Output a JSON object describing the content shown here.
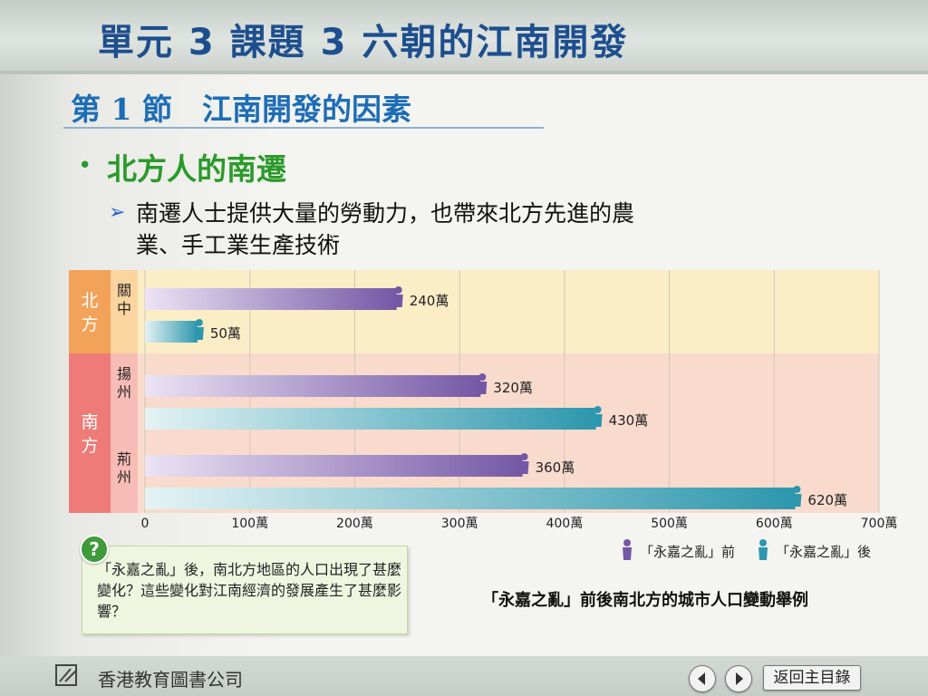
{
  "header": {
    "unit_title": "單元 3 課題 3  六朝的江南開發"
  },
  "section": {
    "title": "第 1 節　江南開發的因素"
  },
  "bullet": {
    "title": "北方人的南遷",
    "sub_text": "南遷人士提供大量的勞動力，也帶來北方先進的農業、手工業生產技術"
  },
  "question": {
    "icon_glyph": "?",
    "text": "「永嘉之亂」後，南北方地區的人口出現了甚麼變化？這些變化對江南經濟的發展產生了甚麼影響？"
  },
  "caption": "「永嘉之亂」前後南北方的城市人口變動舉例",
  "footer": {
    "publisher": "香港教育圖書公司",
    "home_label": "返回主目錄",
    "icons": {
      "logo": "publisher-logo-icon",
      "prev": "prev-arrow-icon",
      "next": "next-arrow-icon"
    }
  },
  "chart_data": {
    "type": "bar",
    "orientation": "horizontal",
    "regions": [
      {
        "name": "北方",
        "cities": [
          "關中"
        ]
      },
      {
        "name": "南方",
        "cities": [
          "揚州",
          "荊州"
        ]
      }
    ],
    "categories": [
      "關中",
      "揚州",
      "荊州"
    ],
    "series": [
      {
        "name": "「永嘉之亂」前",
        "values": [
          240,
          320,
          360
        ],
        "labels": [
          "240萬",
          "320萬",
          "360萬"
        ]
      },
      {
        "name": "「永嘉之亂」後",
        "values": [
          50,
          430,
          620
        ],
        "labels": [
          "50萬",
          "430萬",
          "620萬"
        ]
      }
    ],
    "x_ticks": [
      "0",
      "100萬",
      "200萬",
      "300萬",
      "400萬",
      "500萬",
      "600萬",
      "700萬"
    ],
    "xlim": [
      0,
      700
    ],
    "grid": true,
    "legend_position": "bottom-right",
    "colors": {
      "before": "#7458a6",
      "before_light": "#ece3f4",
      "after": "#2d97ad",
      "after_light": "#e4f3f4",
      "north_bg": "#fbedc6",
      "south_bg": "#f9dbcd",
      "north_region": "#f3a25a",
      "north_city": "#fbd5a0",
      "south_region": "#ee7b78",
      "south_city": "#f8bcb6"
    }
  }
}
